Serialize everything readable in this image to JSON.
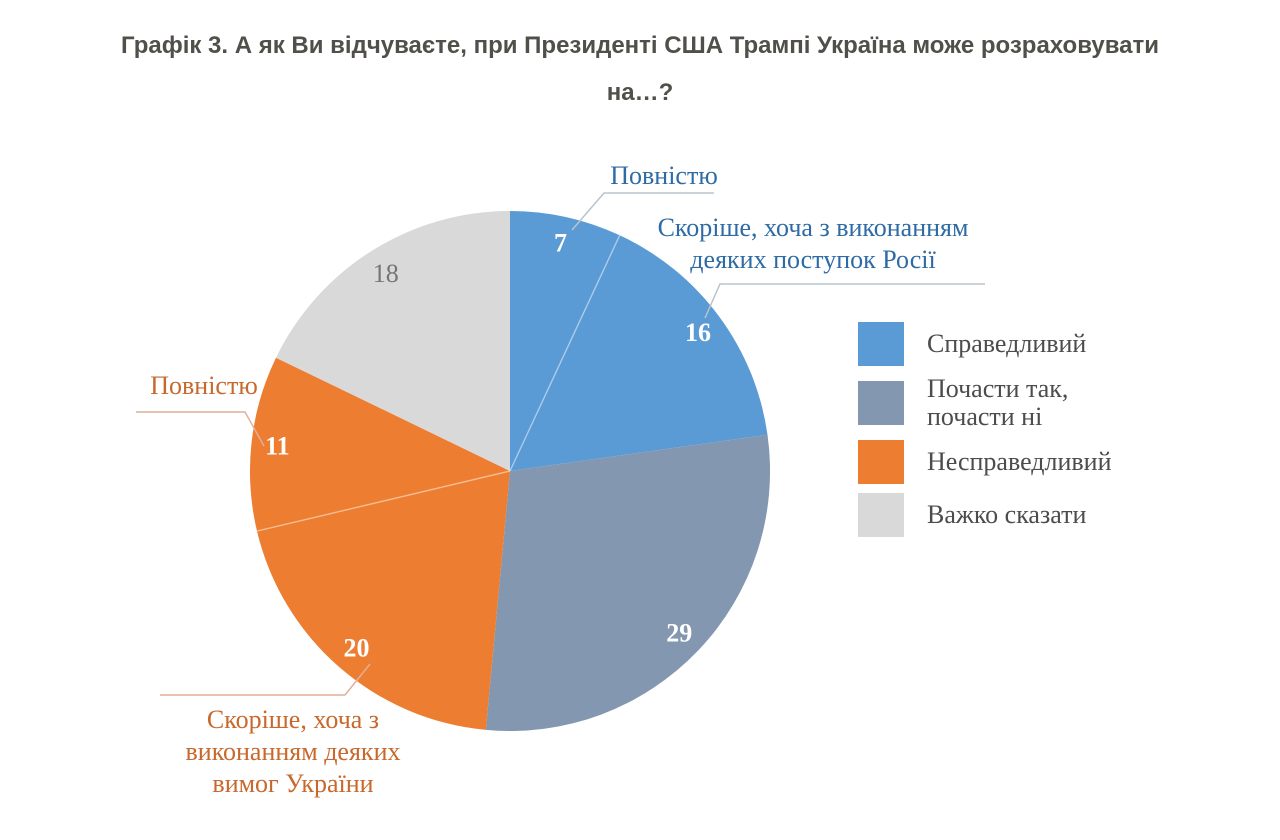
{
  "title": {
    "text": "Графік 3. А як Ви відчуваєте, при Президенті США Трампі Україна може розраховувати\nна…?",
    "color": "#514F49"
  },
  "chart_data": {
    "type": "pie",
    "title": "Графік 3. А як Ви відчуваєте, при Президенті США Трампі Україна може розраховувати на…?",
    "units": "percent",
    "total": 101,
    "start_angle_deg": 0,
    "direction": "clockwise",
    "slices": [
      {
        "category": "Справедливий",
        "subcategory": "Повністю",
        "value": 7,
        "color": "#5B9BD5",
        "value_label_color": "#FFFFFF",
        "value_label_bold": true
      },
      {
        "category": "Справедливий",
        "subcategory": "Скоріше, хоча з виконанням деяких поступок Росії",
        "value": 16,
        "color": "#5B9BD5",
        "value_label_color": "#FFFFFF",
        "value_label_bold": true
      },
      {
        "category": "Почасти так, почасти ні",
        "subcategory": "",
        "value": 29,
        "color": "#8497B0",
        "value_label_color": "#FFFFFF",
        "value_label_bold": true
      },
      {
        "category": "Несправедливий",
        "subcategory": "Скоріше, хоча з виконанням деяких вимог України",
        "value": 20,
        "color": "#ED7D31",
        "value_label_color": "#FFFFFF",
        "value_label_bold": true
      },
      {
        "category": "Несправедливий",
        "subcategory": "Повністю",
        "value": 11,
        "color": "#ED7D31",
        "value_label_color": "#FFFFFF",
        "value_label_bold": true
      },
      {
        "category": "Важко сказати",
        "subcategory": "",
        "value": 18,
        "color": "#D9D9D9",
        "value_label_color": "#757575",
        "value_label_bold": false
      }
    ],
    "same_color_dividers_after_slice": [
      0,
      3
    ],
    "legend": {
      "position": "right",
      "items": [
        {
          "label": "Справедливий",
          "color": "#5B9BD5"
        },
        {
          "label": "Почасти так,\nпочасти ні",
          "color": "#8497B0"
        },
        {
          "label": "Несправедливий",
          "color": "#ED7D31"
        },
        {
          "label": "Важко сказати",
          "color": "#D9D9D9"
        }
      ]
    },
    "callouts": [
      {
        "text": "Повністю",
        "slice_value": 7,
        "color": "#2E6BA5",
        "line_color": "#B8C3CE"
      },
      {
        "text": "Скоріше, хоча з виконанням\nдеяких поступок Росії",
        "slice_value": 16,
        "color": "#2E6BA5",
        "line_color": "#B8C3CE"
      },
      {
        "text": "Повністю",
        "slice_value": 11,
        "color": "#C8682C",
        "line_color": "#E2AF99"
      },
      {
        "text": "Скоріше, хоча з\nвиконанням деяких\nвимог України",
        "slice_value": 20,
        "color": "#C8682C",
        "line_color": "#E2AF99"
      }
    ]
  }
}
